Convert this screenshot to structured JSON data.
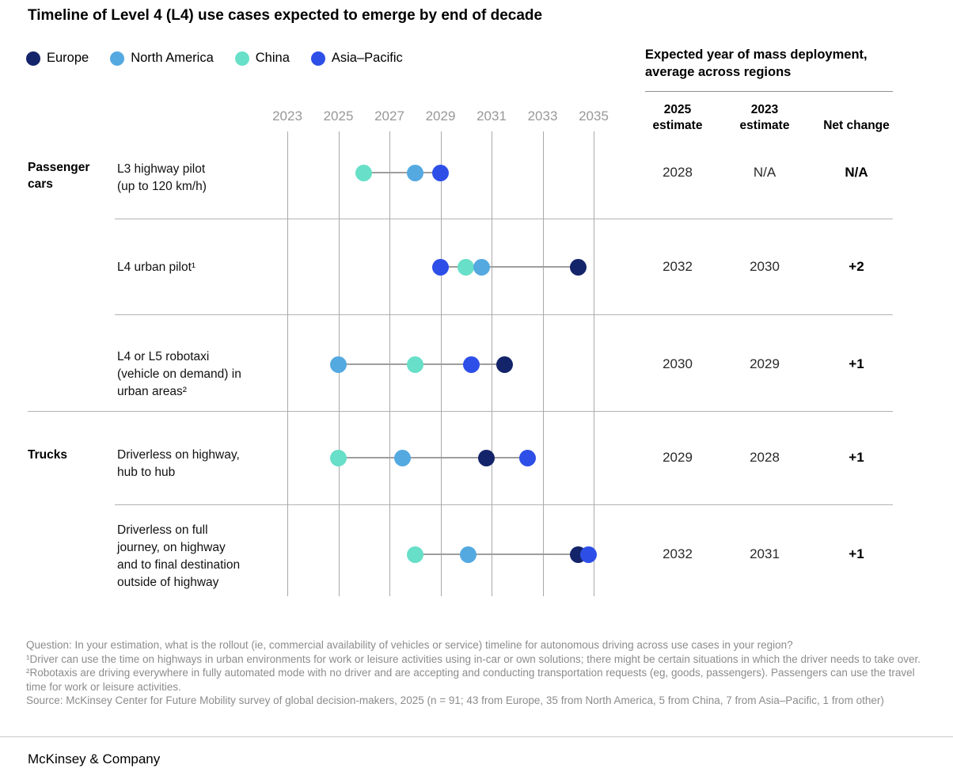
{
  "title": "Timeline of Level 4 (L4) use cases expected to emerge by end of decade",
  "legend": {
    "items": [
      {
        "region": "europe",
        "label": "Europe"
      },
      {
        "region": "north_america",
        "label": "North America"
      },
      {
        "region": "china",
        "label": "China"
      },
      {
        "region": "asia_pacific",
        "label": "Asia–Pacific"
      }
    ]
  },
  "colors": {
    "europe": "#14246A",
    "north_america": "#54A9E1",
    "china": "#68DFC8",
    "asia_pacific": "#2D4FE8",
    "grid": "#a9a9a9",
    "tick_label": "#989898",
    "footnote": "#8c8c8c"
  },
  "right_panel": {
    "heading": "Expected year of mass deployment,\naverage across regions",
    "columns": [
      {
        "lines": [
          "2025",
          "estimate"
        ]
      },
      {
        "lines": [
          "2023",
          "estimate"
        ]
      },
      {
        "lines": [
          "Net change"
        ]
      }
    ]
  },
  "chart_data": {
    "type": "scatter",
    "title": "Timeline of Level 4 (L4) use cases expected to emerge by end of decade",
    "x_axis": {
      "ticks": [
        2023,
        2025,
        2027,
        2029,
        2031,
        2033,
        2035
      ],
      "range": [
        2023,
        2035
      ],
      "grid": true
    },
    "legend_position": "top-left",
    "groups": [
      {
        "label": "Passenger cars",
        "row_indexes": [
          0,
          1,
          2
        ]
      },
      {
        "label": "Trucks",
        "row_indexes": [
          3,
          4
        ]
      }
    ],
    "rows": [
      {
        "label_lines": [
          "L3 highway pilot",
          "(up to 120 km/h)"
        ],
        "points": [
          {
            "region": "china",
            "year": 2026
          },
          {
            "region": "north_america",
            "year": 2028
          },
          {
            "region": "asia_pacific",
            "year": 2029
          }
        ],
        "est_2025": "2028",
        "est_2023": "N/A",
        "net_change": "N/A"
      },
      {
        "label_lines": [
          "L4 urban pilot¹"
        ],
        "points": [
          {
            "region": "asia_pacific",
            "year": 2029
          },
          {
            "region": "china",
            "year": 2030
          },
          {
            "region": "north_america",
            "year": 2030.6
          },
          {
            "region": "europe",
            "year": 2034.4
          }
        ],
        "est_2025": "2032",
        "est_2023": "2030",
        "net_change": "+2"
      },
      {
        "label_lines": [
          "L4 or L5 robotaxi",
          "(vehicle on demand) in",
          "urban areas²"
        ],
        "points": [
          {
            "region": "north_america",
            "year": 2025
          },
          {
            "region": "china",
            "year": 2028
          },
          {
            "region": "asia_pacific",
            "year": 2030.2
          },
          {
            "region": "europe",
            "year": 2031.5
          }
        ],
        "est_2025": "2030",
        "est_2023": "2029",
        "net_change": "+1"
      },
      {
        "label_lines": [
          "Driverless on highway,",
          "hub to hub"
        ],
        "points": [
          {
            "region": "china",
            "year": 2025
          },
          {
            "region": "north_america",
            "year": 2027.5
          },
          {
            "region": "europe",
            "year": 2030.8
          },
          {
            "region": "asia_pacific",
            "year": 2032.4
          }
        ],
        "est_2025": "2029",
        "est_2023": "2028",
        "net_change": "+1"
      },
      {
        "label_lines": [
          "Driverless on full",
          "journey, on highway",
          "and to final destination",
          "outside of highway"
        ],
        "points": [
          {
            "region": "china",
            "year": 2028
          },
          {
            "region": "north_america",
            "year": 2030.1
          },
          {
            "region": "europe",
            "year": 2034.4
          },
          {
            "region": "asia_pacific",
            "year": 2034.8
          }
        ],
        "est_2025": "2032",
        "est_2023": "2031",
        "net_change": "+1"
      }
    ]
  },
  "footnotes": [
    "Question: In your estimation, what is the rollout (ie, commercial availability of vehicles or service) timeline for autonomous driving across use cases in your region?",
    "¹Driver can use the time on highways in urban environments for work or leisure activities using in-car or own solutions; there might be certain situations in which the driver needs to take over. ²Robotaxis are driving everywhere in fully automated mode with no driver and are accepting and conducting transportation requests (eg, goods, passengers). Passengers can use the travel time for work or leisure activities.",
    "Source: McKinsey Center for Future Mobility survey of global decision-makers, 2025 (n = 91; 43 from Europe, 35 from North America, 5 from China, 7 from Asia–Pacific, 1 from other)"
  ],
  "brand": "McKinsey & Company"
}
